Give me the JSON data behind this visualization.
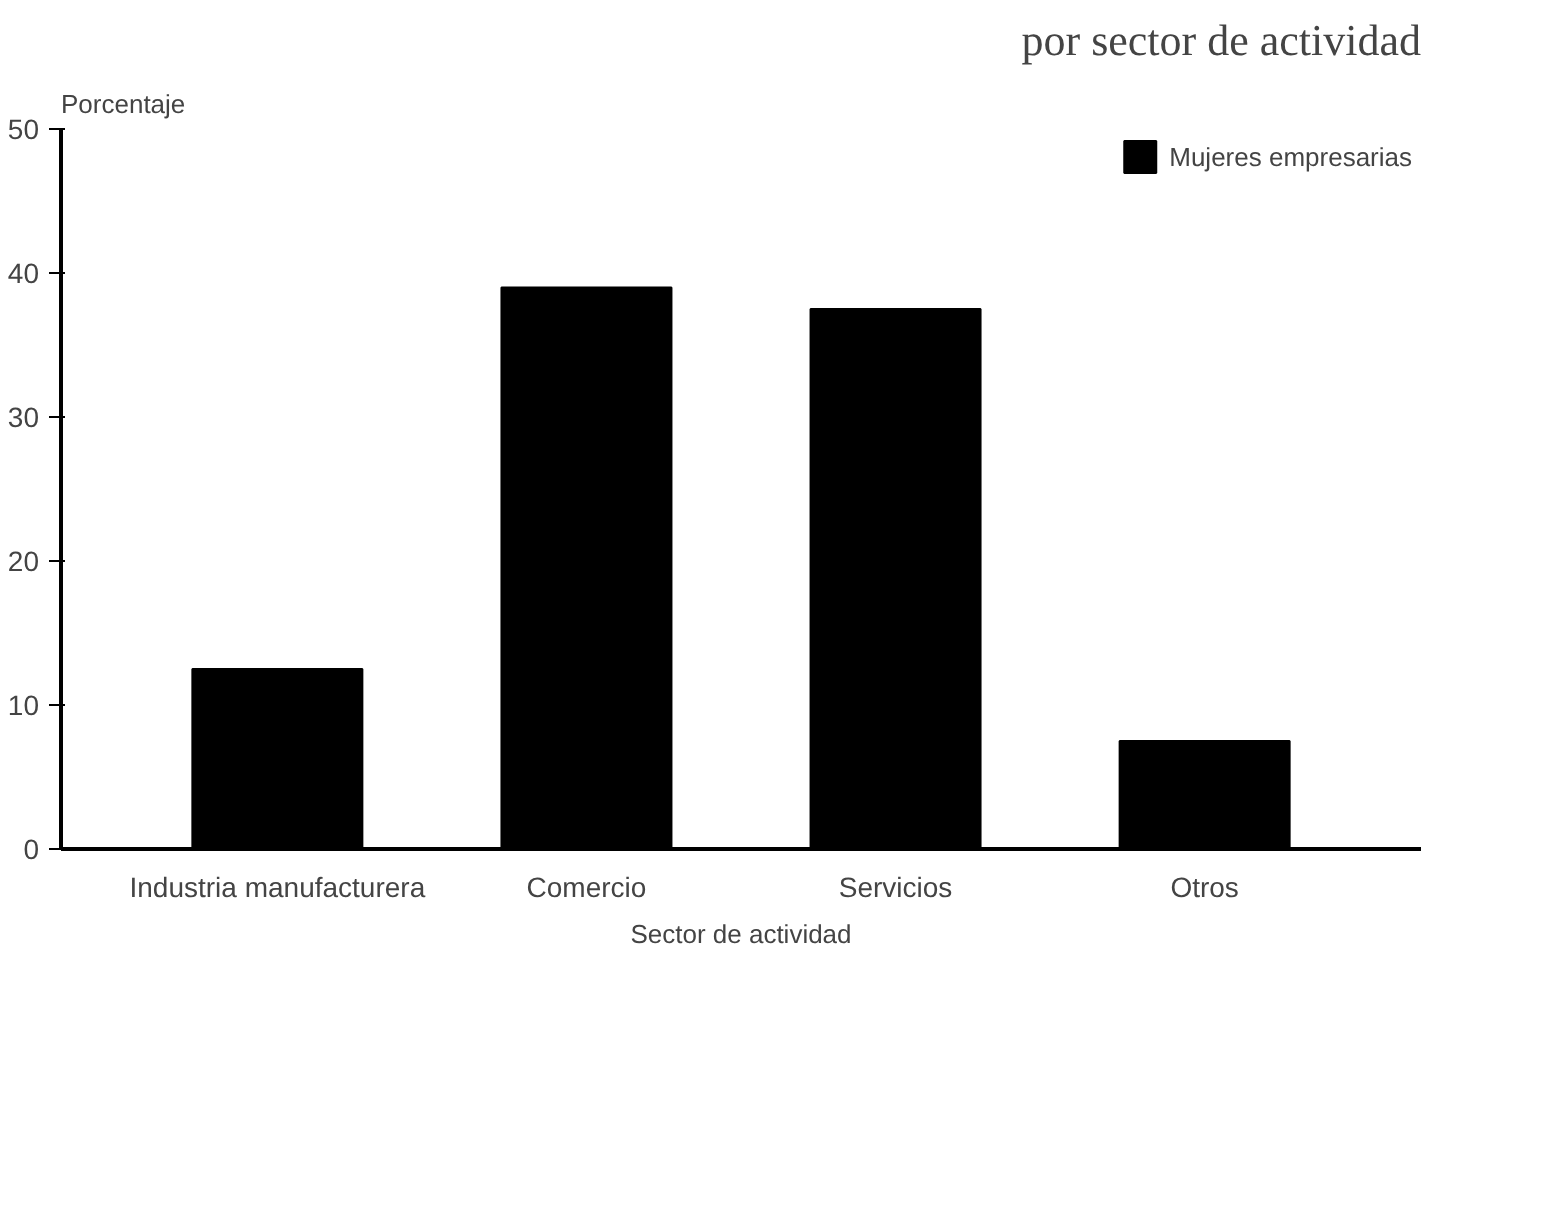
{
  "chart_data": {
    "type": "bar",
    "title": "por sector de actividad",
    "xlabel": "Sector de actividad",
    "ylabel": "Porcentaje",
    "categories": [
      "Industria manufacturera",
      "Comercio",
      "Servicios",
      "Otros"
    ],
    "series": [
      {
        "name": "Mujeres empresarias",
        "color": "#000000",
        "values": [
          12.5,
          39,
          37.5,
          7.5
        ]
      }
    ],
    "ylim": [
      0,
      50
    ],
    "yticks": [
      0,
      10,
      20,
      30,
      40,
      50
    ],
    "grid": false,
    "legend": "top right"
  }
}
